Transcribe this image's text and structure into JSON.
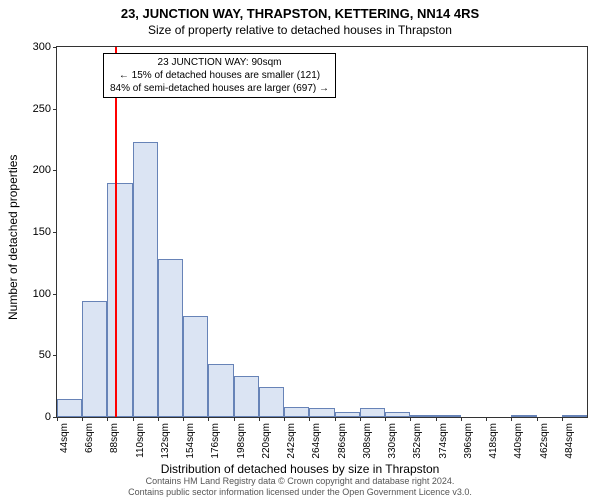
{
  "title": "23, JUNCTION WAY, THRAPSTON, KETTERING, NN14 4RS",
  "subtitle": "Size of property relative to detached houses in Thrapston",
  "chart": {
    "type": "histogram",
    "ylabel": "Number of detached properties",
    "xlabel": "Distribution of detached houses by size in Thrapston",
    "ylim": [
      0,
      300
    ],
    "yticks": [
      0,
      50,
      100,
      150,
      200,
      250,
      300
    ],
    "xticks": [
      "44sqm",
      "66sqm",
      "88sqm",
      "110sqm",
      "132sqm",
      "154sqm",
      "176sqm",
      "198sqm",
      "220sqm",
      "242sqm",
      "264sqm",
      "286sqm",
      "308sqm",
      "330sqm",
      "352sqm",
      "374sqm",
      "396sqm",
      "418sqm",
      "440sqm",
      "462sqm",
      "484sqm"
    ],
    "values": [
      15,
      94,
      190,
      223,
      128,
      82,
      43,
      33,
      24,
      8,
      7,
      4,
      7,
      4,
      2,
      1,
      0,
      0,
      2,
      0,
      2
    ],
    "bar_fill": "#dbe4f3",
    "bar_stroke": "#6783b7",
    "marker_position_pct": 11.0,
    "marker_color": "#ff0000",
    "background_color": "#ffffff",
    "axis_color": "#333333",
    "text_color": "#000000",
    "annotation": {
      "line1": "23 JUNCTION WAY: 90sqm",
      "line2": "← 15% of detached houses are smaller (121)",
      "line3": "84% of semi-detached houses are larger (697) →"
    },
    "footer": {
      "line1": "Contains HM Land Registry data © Crown copyright and database right 2024.",
      "line2": "Contains public sector information licensed under the Open Government Licence v3.0."
    }
  }
}
